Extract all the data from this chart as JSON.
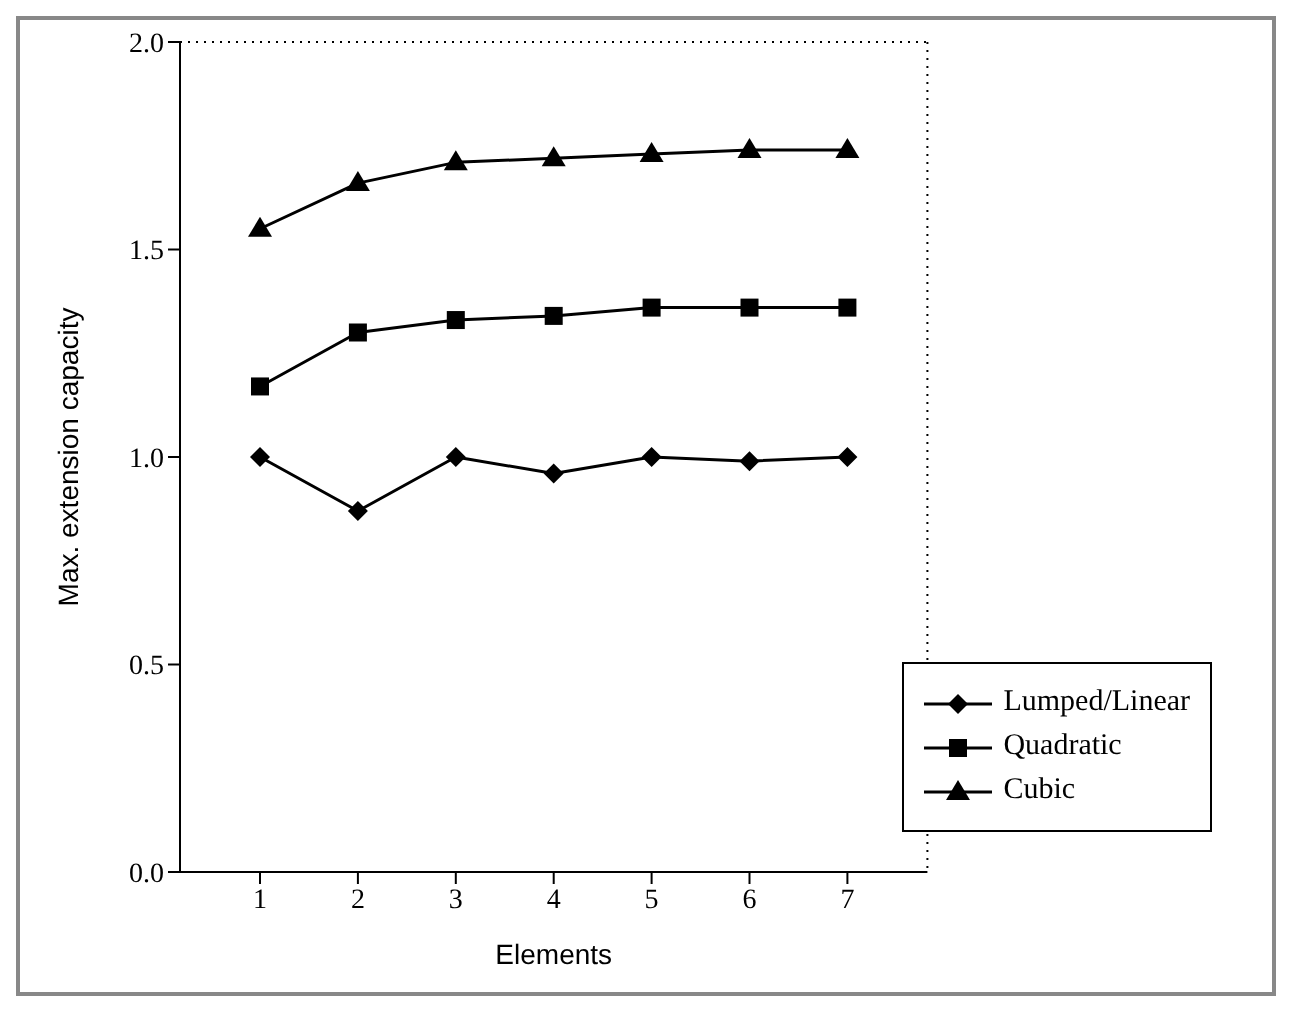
{
  "chart_data": {
    "type": "line",
    "xlabel": "Elements",
    "ylabel": "Max. extension capacity",
    "categories": [
      "1",
      "2",
      "3",
      "4",
      "5",
      "6",
      "7"
    ],
    "series": [
      {
        "name": "Lumped/Linear",
        "color": "#000000",
        "marker": "diamond",
        "values": [
          1.0,
          0.87,
          1.0,
          0.96,
          1.0,
          0.99,
          1.0
        ]
      },
      {
        "name": "Quadratic",
        "color": "#000000",
        "marker": "square",
        "values": [
          1.17,
          1.3,
          1.33,
          1.34,
          1.36,
          1.36,
          1.36
        ]
      },
      {
        "name": "Cubic",
        "color": "#000000",
        "marker": "triangle",
        "values": [
          1.55,
          1.66,
          1.71,
          1.72,
          1.73,
          1.74,
          1.74
        ]
      }
    ],
    "ylim": [
      0,
      2
    ],
    "yticks": [
      {
        "value": 0,
        "label": "0.0"
      },
      {
        "value": 0.5,
        "label": "0.5"
      },
      {
        "value": 1,
        "label": "1.0"
      },
      {
        "value": 1.5,
        "label": "1.5"
      },
      {
        "value": 2,
        "label": "2.0"
      }
    ],
    "grid": false,
    "legend": "bottom right",
    "line_style": "solid"
  }
}
